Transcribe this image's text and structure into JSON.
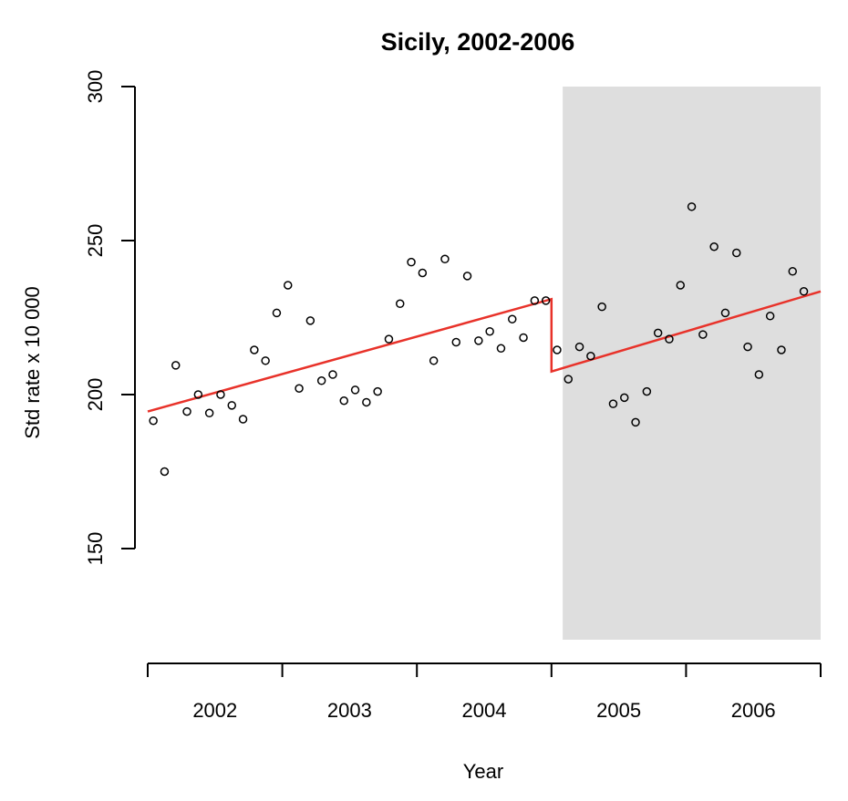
{
  "chart_data": {
    "type": "scatter",
    "title": "Sicily, 2002-2006",
    "xlabel": "Year",
    "ylabel": "Std rate x 10 000",
    "yticks": [
      150,
      200,
      250,
      300
    ],
    "ylim": [
      120,
      300
    ],
    "year_labels": [
      "2002",
      "2003",
      "2004",
      "2005",
      "2006"
    ],
    "xlim": [
      0.5,
      60.5
    ],
    "shaded_region": {
      "from_month": 37.5,
      "to_month": 60.5,
      "color": "#dedede"
    },
    "x_unit": "month index (1 = Jan 2002)",
    "points": [
      {
        "x": 1,
        "y": 191.5
      },
      {
        "x": 2,
        "y": 175
      },
      {
        "x": 3,
        "y": 209.5
      },
      {
        "x": 4,
        "y": 194.5
      },
      {
        "x": 5,
        "y": 200
      },
      {
        "x": 6,
        "y": 194
      },
      {
        "x": 7,
        "y": 200
      },
      {
        "x": 8,
        "y": 196.5
      },
      {
        "x": 9,
        "y": 192
      },
      {
        "x": 10,
        "y": 214.5
      },
      {
        "x": 11,
        "y": 211
      },
      {
        "x": 12,
        "y": 226.5
      },
      {
        "x": 13,
        "y": 235.5
      },
      {
        "x": 14,
        "y": 202
      },
      {
        "x": 15,
        "y": 224
      },
      {
        "x": 16,
        "y": 204.5
      },
      {
        "x": 17,
        "y": 206.5
      },
      {
        "x": 18,
        "y": 198
      },
      {
        "x": 19,
        "y": 201.5
      },
      {
        "x": 20,
        "y": 197.5
      },
      {
        "x": 21,
        "y": 201
      },
      {
        "x": 22,
        "y": 218
      },
      {
        "x": 23,
        "y": 229.5
      },
      {
        "x": 24,
        "y": 243
      },
      {
        "x": 25,
        "y": 239.5
      },
      {
        "x": 26,
        "y": 211
      },
      {
        "x": 27,
        "y": 244
      },
      {
        "x": 28,
        "y": 217
      },
      {
        "x": 29,
        "y": 238.5
      },
      {
        "x": 30,
        "y": 217.5
      },
      {
        "x": 31,
        "y": 220.5
      },
      {
        "x": 32,
        "y": 215
      },
      {
        "x": 33,
        "y": 224.5
      },
      {
        "x": 34,
        "y": 218.5
      },
      {
        "x": 35,
        "y": 230.5
      },
      {
        "x": 36,
        "y": 230.5
      },
      {
        "x": 37,
        "y": 214.5
      },
      {
        "x": 38,
        "y": 205
      },
      {
        "x": 39,
        "y": 215.5
      },
      {
        "x": 40,
        "y": 212.5
      },
      {
        "x": 41,
        "y": 228.5
      },
      {
        "x": 42,
        "y": 197
      },
      {
        "x": 43,
        "y": 199
      },
      {
        "x": 44,
        "y": 191
      },
      {
        "x": 45,
        "y": 201
      },
      {
        "x": 46,
        "y": 220
      },
      {
        "x": 47,
        "y": 218
      },
      {
        "x": 48,
        "y": 235.5
      },
      {
        "x": 49,
        "y": 261
      },
      {
        "x": 50,
        "y": 219.5
      },
      {
        "x": 51,
        "y": 248
      },
      {
        "x": 52,
        "y": 226.5
      },
      {
        "x": 53,
        "y": 246
      },
      {
        "x": 54,
        "y": 215.5
      },
      {
        "x": 55,
        "y": 206.5
      },
      {
        "x": 56,
        "y": 225.5
      },
      {
        "x": 57,
        "y": 214.5
      },
      {
        "x": 58,
        "y": 240
      },
      {
        "x": 59,
        "y": 233.5
      }
    ],
    "fit_segments": [
      {
        "x": [
          0.5,
          36.5
        ],
        "y": [
          194.5,
          231
        ]
      },
      {
        "x": [
          36.5,
          36.5
        ],
        "y": [
          231,
          207.5
        ]
      },
      {
        "x": [
          36.5,
          60.5
        ],
        "y": [
          207.5,
          233.5
        ]
      }
    ],
    "fit_color": "#e8322a"
  }
}
